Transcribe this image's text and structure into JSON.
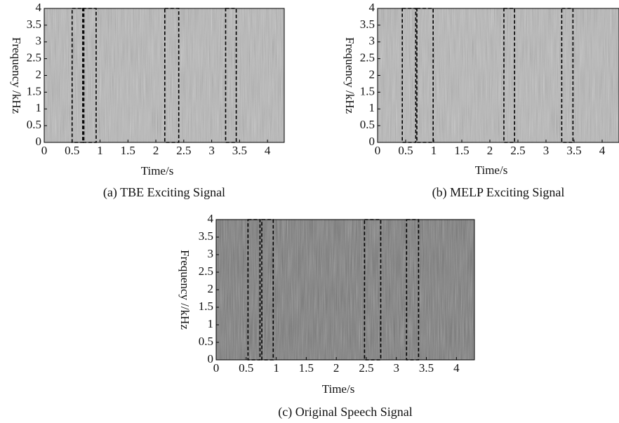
{
  "chart_data": [
    {
      "type": "spectrogram",
      "caption": "(a) TBE Exciting Signal",
      "xlabel": "Time/s",
      "ylabel": "Frequency /kHz",
      "xlim": [
        0,
        4.3
      ],
      "xticks": [
        0,
        0.5,
        1,
        1.5,
        2,
        2.5,
        3,
        3.5,
        4
      ],
      "ylim": [
        0,
        4
      ],
      "yticks": [
        0,
        0.5,
        1,
        1.5,
        2,
        2.5,
        3,
        3.5,
        4
      ],
      "regions": [
        [
          0.5,
          0.71
        ],
        [
          0.69,
          0.93
        ],
        [
          2.16,
          2.41
        ],
        [
          3.25,
          3.44
        ]
      ]
    },
    {
      "type": "spectrogram",
      "caption": "(b) MELP Exciting Signal",
      "xlabel": "Time/s",
      "ylabel": "Frequency /kHz",
      "xlim": [
        0,
        4.3
      ],
      "xticks": [
        0,
        0.5,
        1,
        1.5,
        2,
        2.5,
        3,
        3.5,
        4
      ],
      "ylim": [
        0,
        4
      ],
      "yticks": [
        0,
        0.5,
        1,
        1.5,
        2,
        2.5,
        3,
        3.5,
        4
      ],
      "regions": [
        [
          0.44,
          0.68
        ],
        [
          0.7,
          0.99
        ],
        [
          2.25,
          2.44
        ],
        [
          3.28,
          3.48
        ]
      ]
    },
    {
      "type": "spectrogram",
      "caption": "(c) Original Speech Signal",
      "xlabel": "Time/s",
      "ylabel": "Frequency //kHz",
      "xlim": [
        0,
        4.3
      ],
      "xticks": [
        0,
        0.5,
        1,
        1.5,
        2,
        2.5,
        3,
        3.5,
        4
      ],
      "ylim": [
        0,
        4
      ],
      "yticks": [
        0,
        0.5,
        1,
        1.5,
        2,
        2.5,
        3,
        3.5,
        4
      ],
      "regions": [
        [
          0.53,
          0.73
        ],
        [
          0.76,
          0.95
        ],
        [
          2.47,
          2.74
        ],
        [
          3.17,
          3.37
        ]
      ]
    }
  ]
}
